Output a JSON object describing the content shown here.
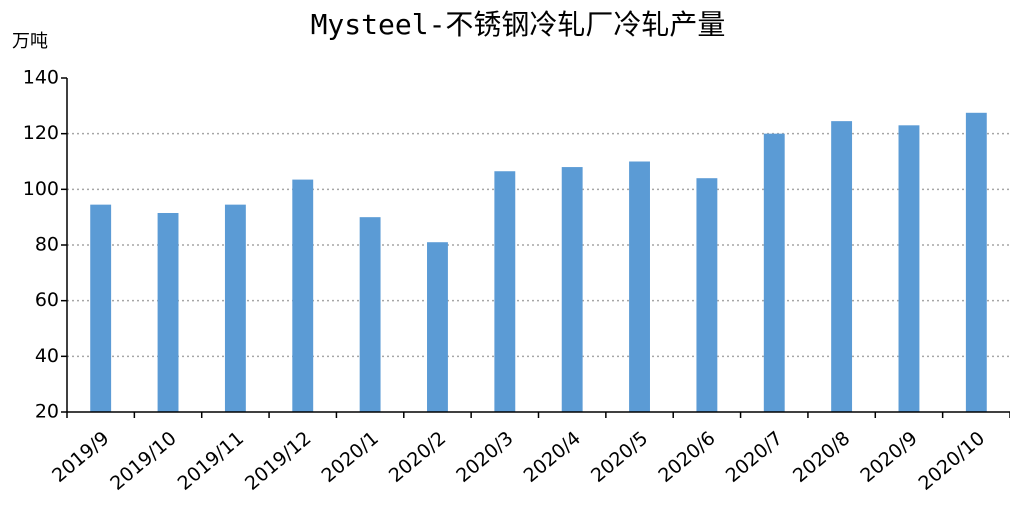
{
  "chart_data": {
    "type": "bar",
    "title": "Mysteel-不锈钢冷轧厂冷轧产量",
    "y_axis_label": "万吨",
    "categories": [
      "2019/9",
      "2019/10",
      "2019/11",
      "2019/12",
      "2020/1",
      "2020/2",
      "2020/3",
      "2020/4",
      "2020/5",
      "2020/6",
      "2020/7",
      "2020/8",
      "2020/9",
      "2020/10"
    ],
    "values": [
      94.5,
      91.5,
      94.5,
      103.5,
      90,
      81,
      106.5,
      108,
      110,
      104,
      120,
      124.5,
      123,
      127.5
    ],
    "color": "#5b9bd5",
    "ylim": [
      20,
      140
    ],
    "yticks": [
      20,
      40,
      60,
      80,
      100,
      120,
      140
    ],
    "grid": true
  }
}
